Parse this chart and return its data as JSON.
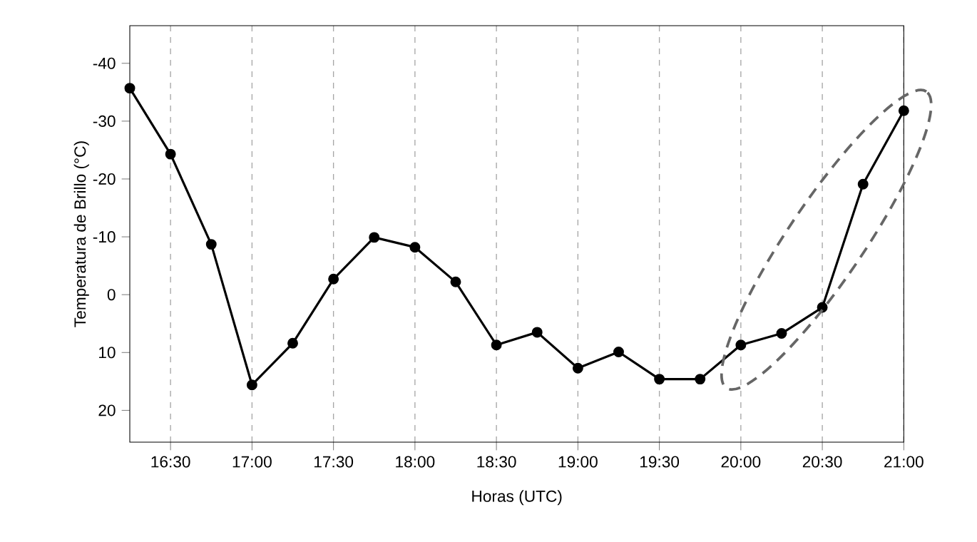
{
  "chart_data": {
    "type": "line",
    "xlabel": "Horas (UTC)",
    "ylabel": "Temperatura de Brillo (°C)",
    "x": [
      16.25,
      16.5,
      16.75,
      17.0,
      17.25,
      17.5,
      17.75,
      18.0,
      18.25,
      18.5,
      18.75,
      19.0,
      19.25,
      19.5,
      19.75,
      20.0,
      20.25,
      20.5,
      20.75,
      21.0
    ],
    "series": [
      {
        "color": "#000000",
        "values": [
          -35.7,
          -24.3,
          -8.7,
          15.6,
          8.4,
          -2.7,
          -9.9,
          -8.2,
          -2.2,
          8.7,
          6.5,
          12.7,
          9.9,
          14.6,
          14.6,
          8.7,
          6.7,
          2.2,
          -19.1,
          -31.8
        ]
      }
    ],
    "xlim": [
      16.25,
      21.0
    ],
    "ylim": [
      25.5,
      -46.5
    ],
    "xticks": [
      {
        "value": 16.5,
        "label": "16:30"
      },
      {
        "value": 17.0,
        "label": "17:00"
      },
      {
        "value": 17.5,
        "label": "17:30"
      },
      {
        "value": 18.0,
        "label": "18:00"
      },
      {
        "value": 18.5,
        "label": "18:30"
      },
      {
        "value": 19.0,
        "label": "19:00"
      },
      {
        "value": 19.5,
        "label": "19:30"
      },
      {
        "value": 20.0,
        "label": "20:00"
      },
      {
        "value": 20.5,
        "label": "20:30"
      },
      {
        "value": 21.0,
        "label": "21:00"
      }
    ],
    "yticks": [
      -40,
      -30,
      -20,
      -10,
      0,
      10,
      20
    ],
    "grid": "x",
    "marker": "circle",
    "line_style": "solid"
  }
}
